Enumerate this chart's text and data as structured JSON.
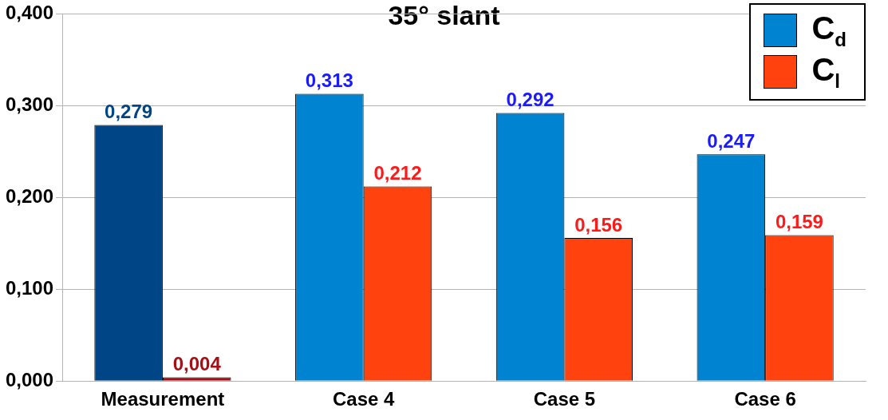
{
  "chart_data": {
    "type": "bar",
    "title": "35° slant",
    "categories": [
      "Measurement",
      "Case 4",
      "Case 5",
      "Case 6"
    ],
    "series": [
      {
        "name": "C$_{d}$",
        "color": "#0084d1",
        "colors": [
          "#004586",
          "#0084d1",
          "#0084d1",
          "#0084d1"
        ],
        "values": [
          0.279,
          0.313,
          0.292,
          0.247
        ],
        "value_labels": [
          "0,279",
          "0,313",
          "0,292",
          "0,247"
        ]
      },
      {
        "name": "C$_{l}$",
        "color": "#ff420e",
        "colors": [
          "#a50f15",
          "#ff420e",
          "#ff420e",
          "#ff420e"
        ],
        "values": [
          0.004,
          0.212,
          0.156,
          0.159
        ],
        "value_labels": [
          "0,004",
          "0,212",
          "0,156",
          "0,159"
        ]
      }
    ],
    "ylim": [
      0,
      0.4
    ],
    "yticks": [
      {
        "value": 0,
        "label": "0,000"
      },
      {
        "value": 0.1,
        "label": "0,100"
      },
      {
        "value": 0.2,
        "label": "0,200"
      },
      {
        "value": 0.3,
        "label": "0,300"
      },
      {
        "value": 0.4,
        "label": "0,400"
      }
    ],
    "grid": "y",
    "legend": "top right"
  }
}
